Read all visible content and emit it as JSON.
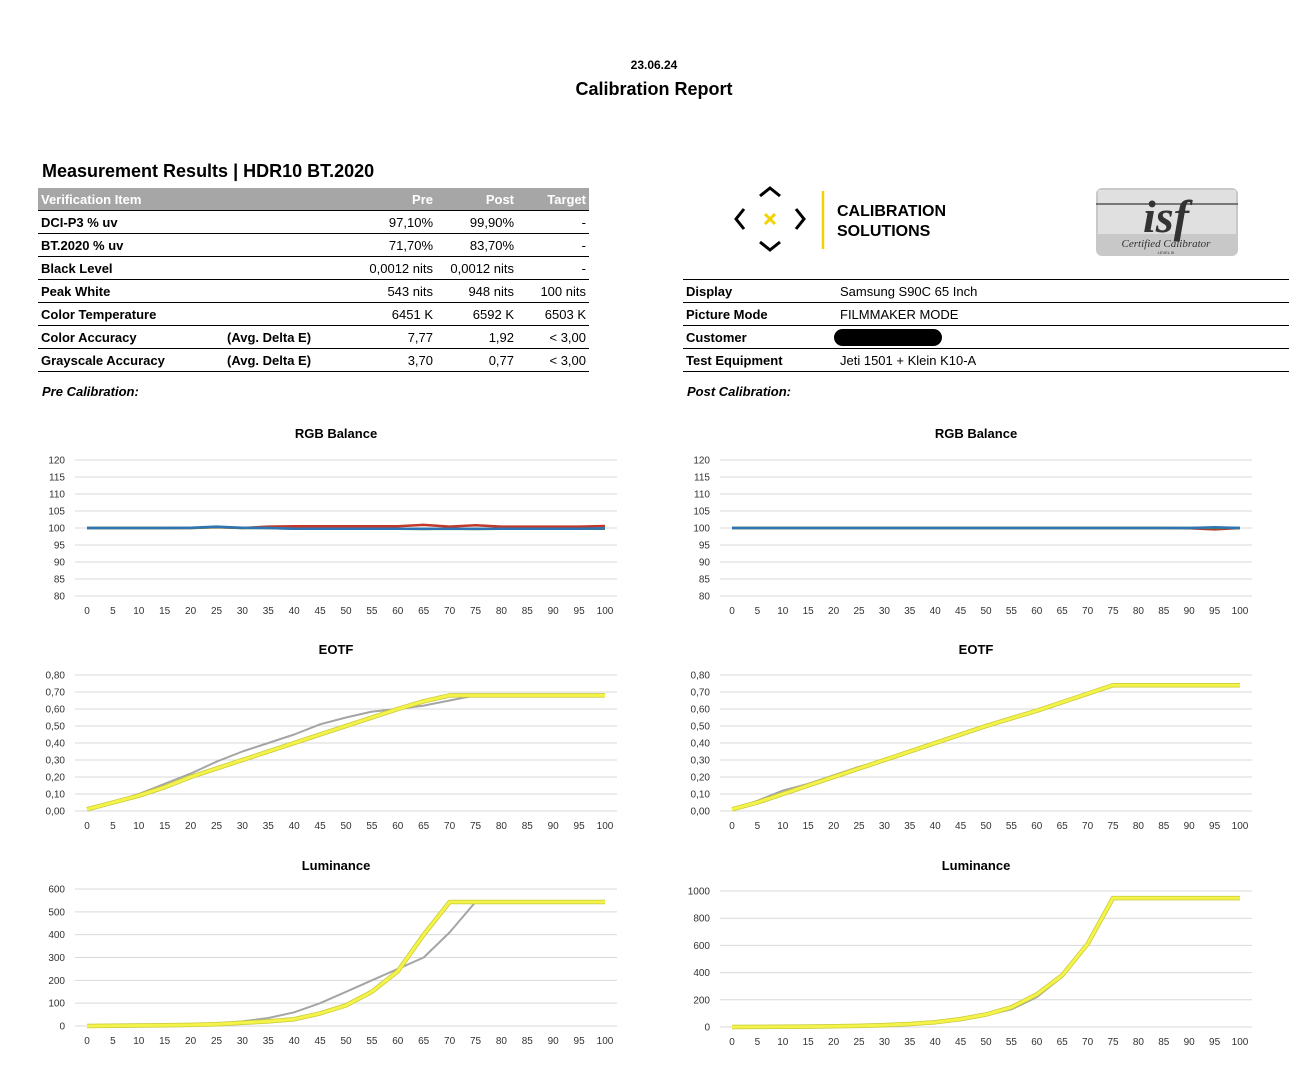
{
  "header": {
    "date": "23.06.24",
    "title": "Calibration Report"
  },
  "results": {
    "heading": "Measurement Results | HDR10 BT.2020",
    "columns": [
      "Verification Item",
      "Pre",
      "Post",
      "Target"
    ],
    "rows": [
      {
        "item": "DCI-P3 % uv",
        "note": "",
        "pre": "97,10%",
        "post": "99,90%",
        "target": "-"
      },
      {
        "item": "BT.2020 % uv",
        "note": "",
        "pre": "71,70%",
        "post": "83,70%",
        "target": "-"
      },
      {
        "item": "Black Level",
        "note": "",
        "pre": "0,0012 nits",
        "post": "0,0012 nits",
        "target": "-"
      },
      {
        "item": "Peak White",
        "note": "",
        "pre": "543 nits",
        "post": "948 nits",
        "target": "100 nits"
      },
      {
        "item": "Color Temperature",
        "note": "",
        "pre": "6451 K",
        "post": "6592 K",
        "target": "6503 K"
      },
      {
        "item": "Color Accuracy",
        "note": "(Avg. Delta E)",
        "pre": "7,77",
        "post": "1,92",
        "target": "< 3,00"
      },
      {
        "item": "Grayscale Accuracy",
        "note": "(Avg. Delta E)",
        "pre": "3,70",
        "post": "0,77",
        "target": "< 3,00"
      }
    ]
  },
  "logo": {
    "line1": "CALIBRATION",
    "line2": "SOLUTIONS",
    "accent": "#f2d200"
  },
  "isf_badge": {
    "mark": "isf",
    "caption": "Certified Calibrator",
    "level": "LEVEL III"
  },
  "info": [
    {
      "label": "Display",
      "value": "Samsung S90C 65 Inch"
    },
    {
      "label": "Picture Mode",
      "value": "FILMMAKER MODE"
    },
    {
      "label": "Customer",
      "value": ""
    },
    {
      "label": "Test Equipment",
      "value": "Jeti 1501 + Klein K10-A"
    }
  ],
  "sections": {
    "pre": "Pre Calibration:",
    "post": "Post Calibration:"
  },
  "colors": {
    "red": "#c0392b",
    "green": "#4f8a3a",
    "blue": "#2e75b6",
    "measured": "#a5a5a5",
    "target": "#f3f34a",
    "grid": "#d9d9d9"
  },
  "chart_data": [
    {
      "id": "pre-rgb",
      "type": "line",
      "title": "RGB Balance",
      "x": [
        0,
        5,
        10,
        15,
        20,
        25,
        30,
        35,
        40,
        45,
        50,
        55,
        60,
        65,
        70,
        75,
        80,
        85,
        90,
        95,
        100
      ],
      "ylim": [
        80,
        120
      ],
      "yticks": [
        "80",
        "85",
        "90",
        "95",
        "100",
        "105",
        "110",
        "115",
        "120"
      ],
      "series": [
        {
          "color": "red",
          "values": [
            100,
            100,
            100,
            100,
            100,
            100.2,
            100,
            100.4,
            100.5,
            100.5,
            100.5,
            100.5,
            100.5,
            100.9,
            100.4,
            100.8,
            100.4,
            100.4,
            100.4,
            100.4,
            100.6
          ]
        },
        {
          "color": "green",
          "values": [
            100,
            100,
            100,
            100,
            100,
            100.3,
            100,
            100,
            99.8,
            99.8,
            99.8,
            99.8,
            99.8,
            99.7,
            99.8,
            99.7,
            99.8,
            99.8,
            99.8,
            99.8,
            99.8
          ]
        },
        {
          "color": "blue",
          "values": [
            100,
            100,
            100,
            100,
            100.1,
            100.4,
            100.1,
            100,
            99.8,
            99.8,
            99.8,
            99.8,
            99.8,
            99.8,
            99.8,
            99.8,
            99.8,
            99.8,
            99.8,
            99.8,
            99.9
          ]
        }
      ]
    },
    {
      "id": "post-rgb",
      "type": "line",
      "title": "RGB Balance",
      "x": [
        0,
        5,
        10,
        15,
        20,
        25,
        30,
        35,
        40,
        45,
        50,
        55,
        60,
        65,
        70,
        75,
        80,
        85,
        90,
        95,
        100
      ],
      "ylim": [
        80,
        120
      ],
      "yticks": [
        "80",
        "85",
        "90",
        "95",
        "100",
        "105",
        "110",
        "115",
        "120"
      ],
      "series": [
        {
          "color": "red",
          "values": [
            100,
            100,
            100,
            100,
            100,
            100,
            100,
            100,
            100,
            100,
            100,
            100,
            100,
            100,
            100,
            100,
            100,
            100,
            99.9,
            99.6,
            100
          ]
        },
        {
          "color": "green",
          "values": [
            100,
            100,
            100,
            100,
            100,
            100,
            100,
            100,
            100,
            100,
            100,
            100,
            100,
            100,
            100,
            100,
            100,
            100,
            100,
            100.1,
            100
          ]
        },
        {
          "color": "blue",
          "values": [
            100,
            100,
            100,
            100,
            100,
            100,
            100,
            100,
            100,
            100,
            100,
            100,
            100,
            100,
            100,
            100,
            100,
            100,
            100,
            100.2,
            100
          ]
        }
      ]
    },
    {
      "id": "pre-eotf",
      "type": "line",
      "title": "EOTF",
      "x": [
        0,
        5,
        10,
        15,
        20,
        25,
        30,
        35,
        40,
        45,
        50,
        55,
        60,
        65,
        70,
        75,
        80,
        85,
        90,
        95,
        100
      ],
      "ylim": [
        0,
        0.8
      ],
      "yticks": [
        "0,00",
        "0,10",
        "0,20",
        "0,30",
        "0,40",
        "0,50",
        "0,60",
        "0,70",
        "0,80"
      ],
      "series": [
        {
          "color": "measured",
          "values": [
            0.01,
            0.05,
            0.1,
            0.16,
            0.22,
            0.29,
            0.35,
            0.4,
            0.45,
            0.51,
            0.55,
            0.585,
            0.6,
            0.62,
            0.65,
            0.68,
            0.68,
            0.68,
            0.68,
            0.68,
            0.68
          ]
        },
        {
          "color": "target",
          "values": [
            0.01,
            0.05,
            0.09,
            0.14,
            0.2,
            0.25,
            0.3,
            0.35,
            0.4,
            0.45,
            0.5,
            0.55,
            0.6,
            0.645,
            0.68,
            0.68,
            0.68,
            0.68,
            0.68,
            0.68,
            0.68
          ]
        }
      ]
    },
    {
      "id": "post-eotf",
      "type": "line",
      "title": "EOTF",
      "x": [
        0,
        5,
        10,
        15,
        20,
        25,
        30,
        35,
        40,
        45,
        50,
        55,
        60,
        65,
        70,
        75,
        80,
        85,
        90,
        95,
        100
      ],
      "ylim": [
        0,
        0.8
      ],
      "yticks": [
        "0,00",
        "0,10",
        "0,20",
        "0,30",
        "0,40",
        "0,50",
        "0,60",
        "0,70",
        "0,80"
      ],
      "series": [
        {
          "color": "measured",
          "values": [
            0.01,
            0.06,
            0.12,
            0.16,
            0.21,
            0.26,
            0.3,
            0.35,
            0.4,
            0.45,
            0.5,
            0.54,
            0.59,
            0.64,
            0.69,
            0.74,
            0.74,
            0.74,
            0.74,
            0.74,
            0.74
          ]
        },
        {
          "color": "target",
          "values": [
            0.01,
            0.05,
            0.1,
            0.15,
            0.2,
            0.25,
            0.3,
            0.35,
            0.4,
            0.45,
            0.5,
            0.545,
            0.59,
            0.64,
            0.69,
            0.74,
            0.74,
            0.74,
            0.74,
            0.74,
            0.74
          ]
        }
      ]
    },
    {
      "id": "pre-lum",
      "type": "line",
      "title": "Luminance",
      "x": [
        0,
        5,
        10,
        15,
        20,
        25,
        30,
        35,
        40,
        45,
        50,
        55,
        60,
        65,
        70,
        75,
        80,
        85,
        90,
        95,
        100
      ],
      "ylim": [
        0,
        600
      ],
      "yticks": [
        "0",
        "100",
        "200",
        "300",
        "400",
        "500",
        "600"
      ],
      "series": [
        {
          "color": "measured",
          "values": [
            0,
            1,
            2,
            3,
            6,
            10,
            20,
            35,
            60,
            100,
            150,
            200,
            250,
            300,
            410,
            543,
            543,
            543,
            543,
            543,
            543
          ]
        },
        {
          "color": "target",
          "values": [
            0,
            1,
            2,
            3,
            5,
            8,
            14,
            20,
            30,
            55,
            90,
            150,
            240,
            400,
            543,
            543,
            543,
            543,
            543,
            543,
            543
          ]
        }
      ]
    },
    {
      "id": "post-lum",
      "type": "line",
      "title": "Luminance",
      "x": [
        0,
        5,
        10,
        15,
        20,
        25,
        30,
        35,
        40,
        45,
        50,
        55,
        60,
        65,
        70,
        75,
        80,
        85,
        90,
        95,
        100
      ],
      "ylim": [
        0,
        1000
      ],
      "yticks": [
        "0",
        "200",
        "400",
        "600",
        "800",
        "1000"
      ],
      "series": [
        {
          "color": "measured",
          "values": [
            0,
            1,
            1,
            2,
            4,
            8,
            14,
            20,
            28,
            50,
            85,
            130,
            220,
            370,
            600,
            948,
            948,
            948,
            948,
            948,
            948
          ]
        },
        {
          "color": "target",
          "values": [
            0,
            1,
            2,
            3,
            5,
            8,
            14,
            22,
            35,
            58,
            92,
            145,
            240,
            380,
            610,
            948,
            948,
            948,
            948,
            948,
            948
          ]
        }
      ]
    }
  ]
}
